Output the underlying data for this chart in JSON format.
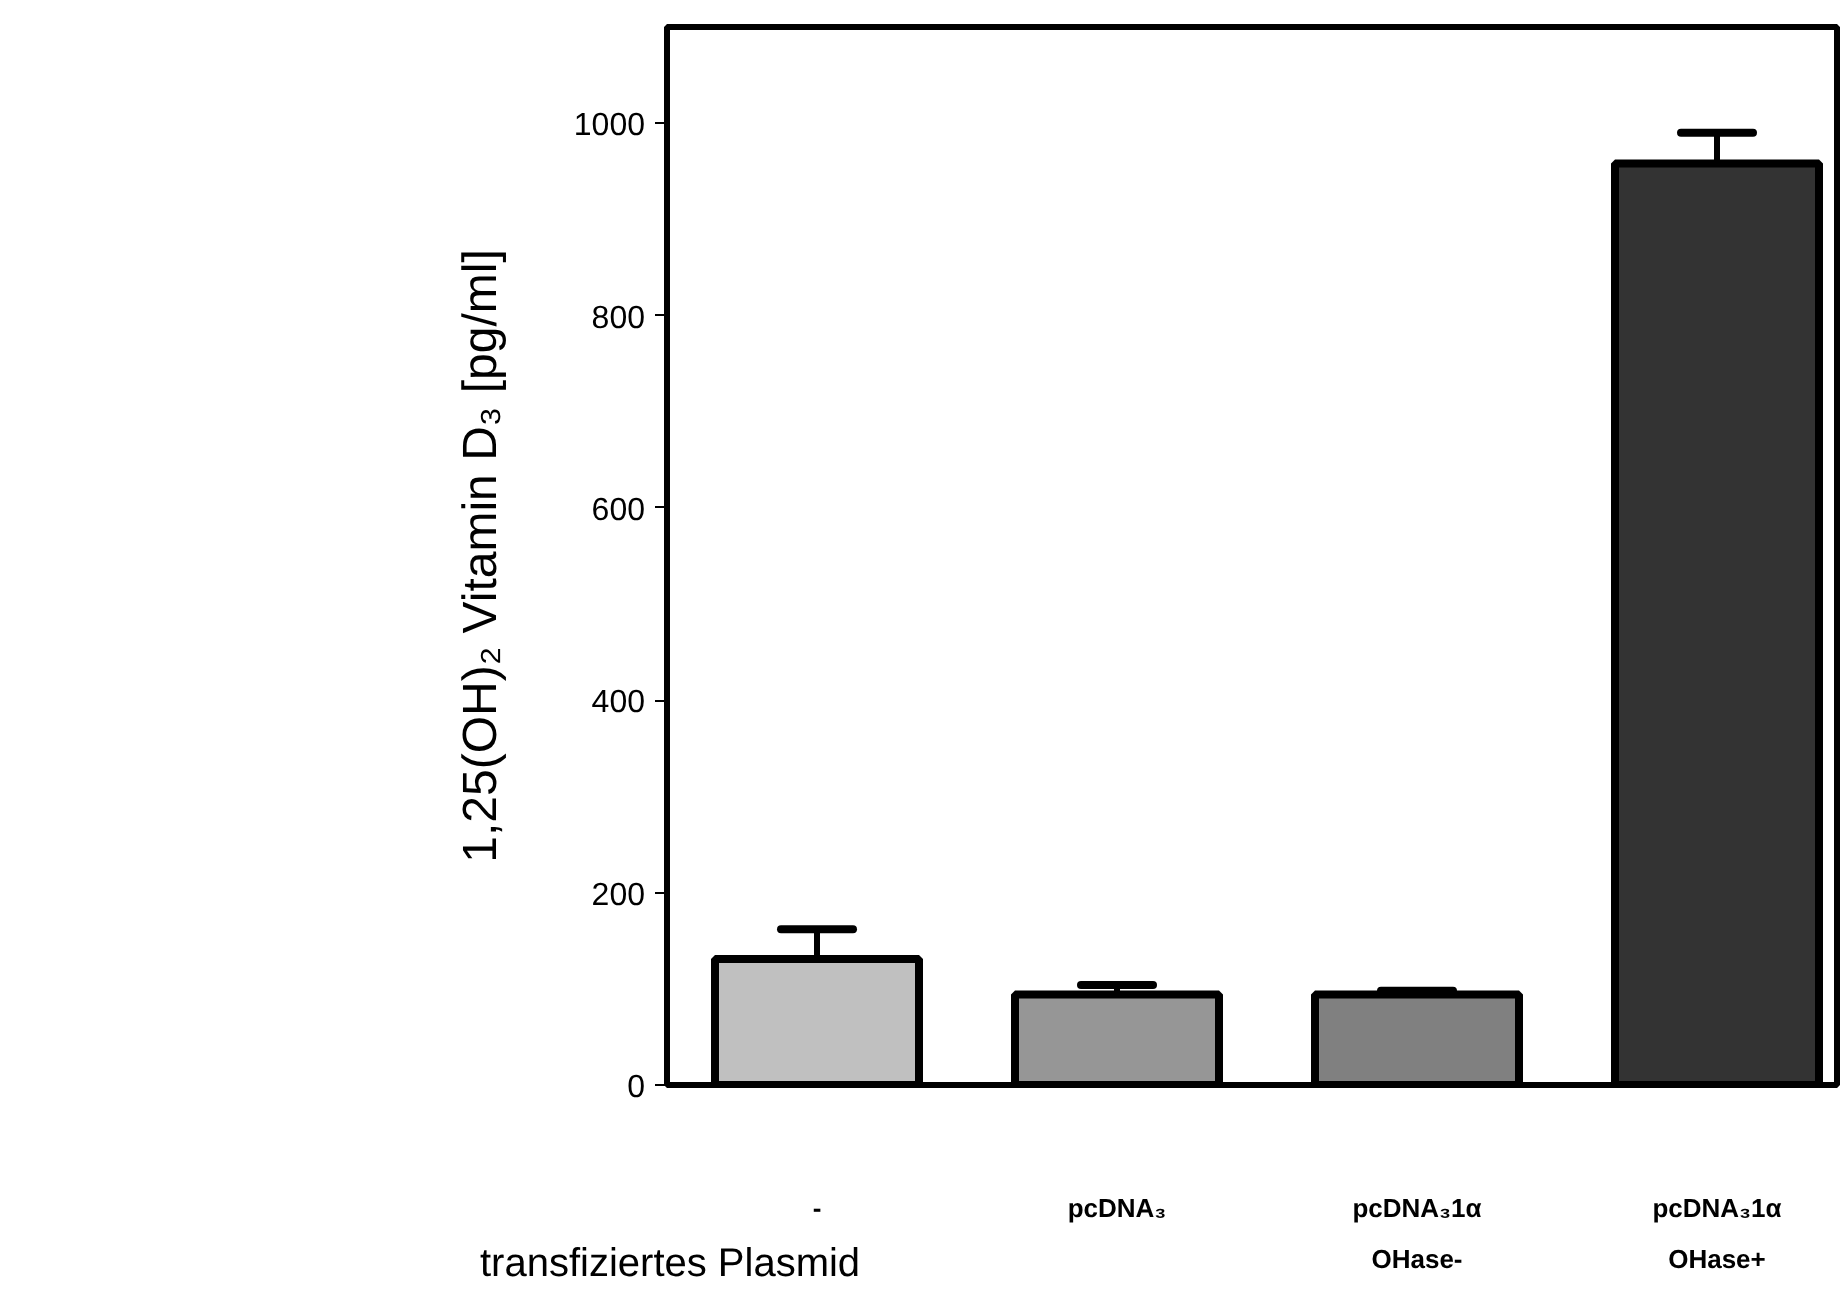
{
  "chart_data": {
    "type": "bar",
    "ylabel": "1,25(OH)₂ Vitamin D₃ [pg/ml]",
    "xlabel": "transfiziertes Plasmid",
    "categories": [
      "-",
      "pcDNA₃",
      "pcDNA₃1α\nOHase-",
      "pcDNA₃1α\nOHase+"
    ],
    "values": [
      131,
      94,
      94,
      958
    ],
    "errors": [
      31,
      10,
      4,
      32
    ],
    "colors": [
      "#c0c0c0",
      "#969696",
      "#808080",
      "#333333"
    ],
    "ylim": [
      0,
      1100
    ],
    "yticks": [
      0,
      200,
      400,
      600,
      800,
      1000
    ],
    "grid": false,
    "legend": false
  }
}
